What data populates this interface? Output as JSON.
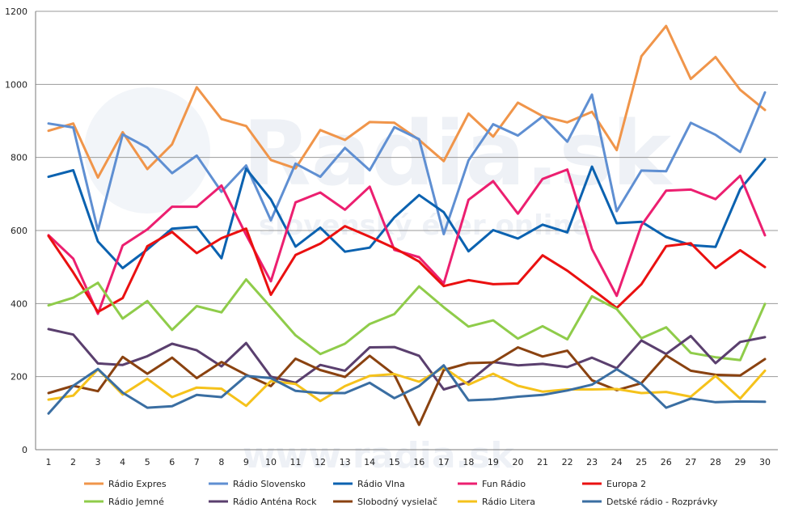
{
  "chart_data": {
    "type": "line",
    "title": "",
    "xlabel": "",
    "ylabel": "",
    "ylim": [
      0,
      1200
    ],
    "yticks": [
      0,
      200,
      400,
      600,
      800,
      1000,
      1200
    ],
    "grid": "horizontal",
    "legend": "bottom",
    "watermark": {
      "logo": "Radia.sk",
      "tagline": "slovenský éter online",
      "bottom": "www.radia.sk"
    },
    "x": [
      1,
      2,
      3,
      4,
      5,
      6,
      7,
      8,
      9,
      10,
      11,
      12,
      13,
      14,
      15,
      16,
      17,
      18,
      19,
      20,
      21,
      22,
      23,
      24,
      25,
      26,
      27,
      28,
      29,
      30
    ],
    "series": [
      {
        "name": "Rádio Expres",
        "color": "#f0954a",
        "values": [
          873,
          893,
          745,
          869,
          768,
          836,
          992,
          905,
          886,
          793,
          770,
          875,
          848,
          897,
          895,
          848,
          790,
          920,
          857,
          950,
          913,
          896,
          925,
          820,
          1077,
          1160,
          1015,
          1075,
          985,
          930
        ]
      },
      {
        "name": "Rádio Slovensko",
        "color": "#5f8fd2",
        "values": [
          893,
          882,
          600,
          863,
          827,
          757,
          805,
          706,
          778,
          628,
          783,
          747,
          826,
          765,
          883,
          850,
          590,
          792,
          891,
          860,
          912,
          843,
          972,
          653,
          764,
          762,
          895,
          862,
          815,
          978
        ]
      },
      {
        "name": "Rádio Vlna",
        "color": "#0b62b0",
        "values": [
          747,
          765,
          570,
          497,
          548,
          605,
          610,
          524,
          769,
          685,
          556,
          608,
          542,
          553,
          636,
          697,
          650,
          543,
          601,
          578,
          616,
          595,
          775,
          620,
          624,
          582,
          560,
          555,
          713,
          795
        ]
      },
      {
        "name": "Fun Rádio",
        "color": "#ec1f70",
        "values": [
          587,
          523,
          372,
          559,
          603,
          665,
          665,
          723,
          588,
          461,
          677,
          704,
          657,
          720,
          547,
          527,
          455,
          684,
          735,
          646,
          741,
          767,
          549,
          421,
          614,
          709,
          712,
          686,
          750,
          587
        ]
      },
      {
        "name": "Europa 2",
        "color": "#ea1010",
        "values": [
          585,
          485,
          377,
          415,
          557,
          596,
          538,
          579,
          605,
          424,
          533,
          564,
          612,
          583,
          552,
          515,
          448,
          464,
          453,
          455,
          532,
          490,
          440,
          388,
          453,
          557,
          565,
          497,
          546,
          500
        ]
      },
      {
        "name": "Rádio Jemné",
        "color": "#8fcc4a",
        "values": [
          395,
          416,
          457,
          359,
          407,
          328,
          393,
          376,
          466,
          390,
          313,
          262,
          290,
          344,
          371,
          447,
          390,
          337,
          354,
          304,
          338,
          302,
          420,
          385,
          305,
          335,
          265,
          253,
          245,
          399
        ]
      },
      {
        "name": "Rádio Anténa Rock",
        "color": "#5a3f6e",
        "values": [
          330,
          315,
          236,
          232,
          256,
          290,
          272,
          228,
          292,
          200,
          183,
          232,
          216,
          280,
          281,
          257,
          165,
          185,
          240,
          231,
          235,
          226,
          252,
          223,
          299,
          262,
          311,
          237,
          295,
          308
        ]
      },
      {
        "name": "Slobodný vysielač",
        "color": "#8a4210",
        "values": [
          155,
          175,
          160,
          254,
          208,
          252,
          196,
          240,
          205,
          174,
          249,
          218,
          199,
          257,
          205,
          68,
          218,
          237,
          239,
          280,
          255,
          271,
          190,
          163,
          182,
          258,
          216,
          205,
          203,
          248
        ]
      },
      {
        "name": "Rádio Litera",
        "color": "#f5c21b",
        "values": [
          137,
          148,
          220,
          151,
          194,
          144,
          170,
          167,
          120,
          188,
          180,
          133,
          174,
          202,
          207,
          186,
          225,
          178,
          208,
          175,
          159,
          165,
          165,
          166,
          155,
          158,
          145,
          202,
          140,
          216
        ]
      },
      {
        "name": "Detské rádio - Rozprávky",
        "color": "#3a6ea2",
        "values": [
          99,
          175,
          221,
          156,
          115,
          119,
          150,
          144,
          202,
          196,
          161,
          155,
          155,
          183,
          141,
          174,
          231,
          135,
          138,
          145,
          150,
          162,
          178,
          220,
          180,
          115,
          140,
          130,
          132,
          131
        ]
      }
    ]
  }
}
